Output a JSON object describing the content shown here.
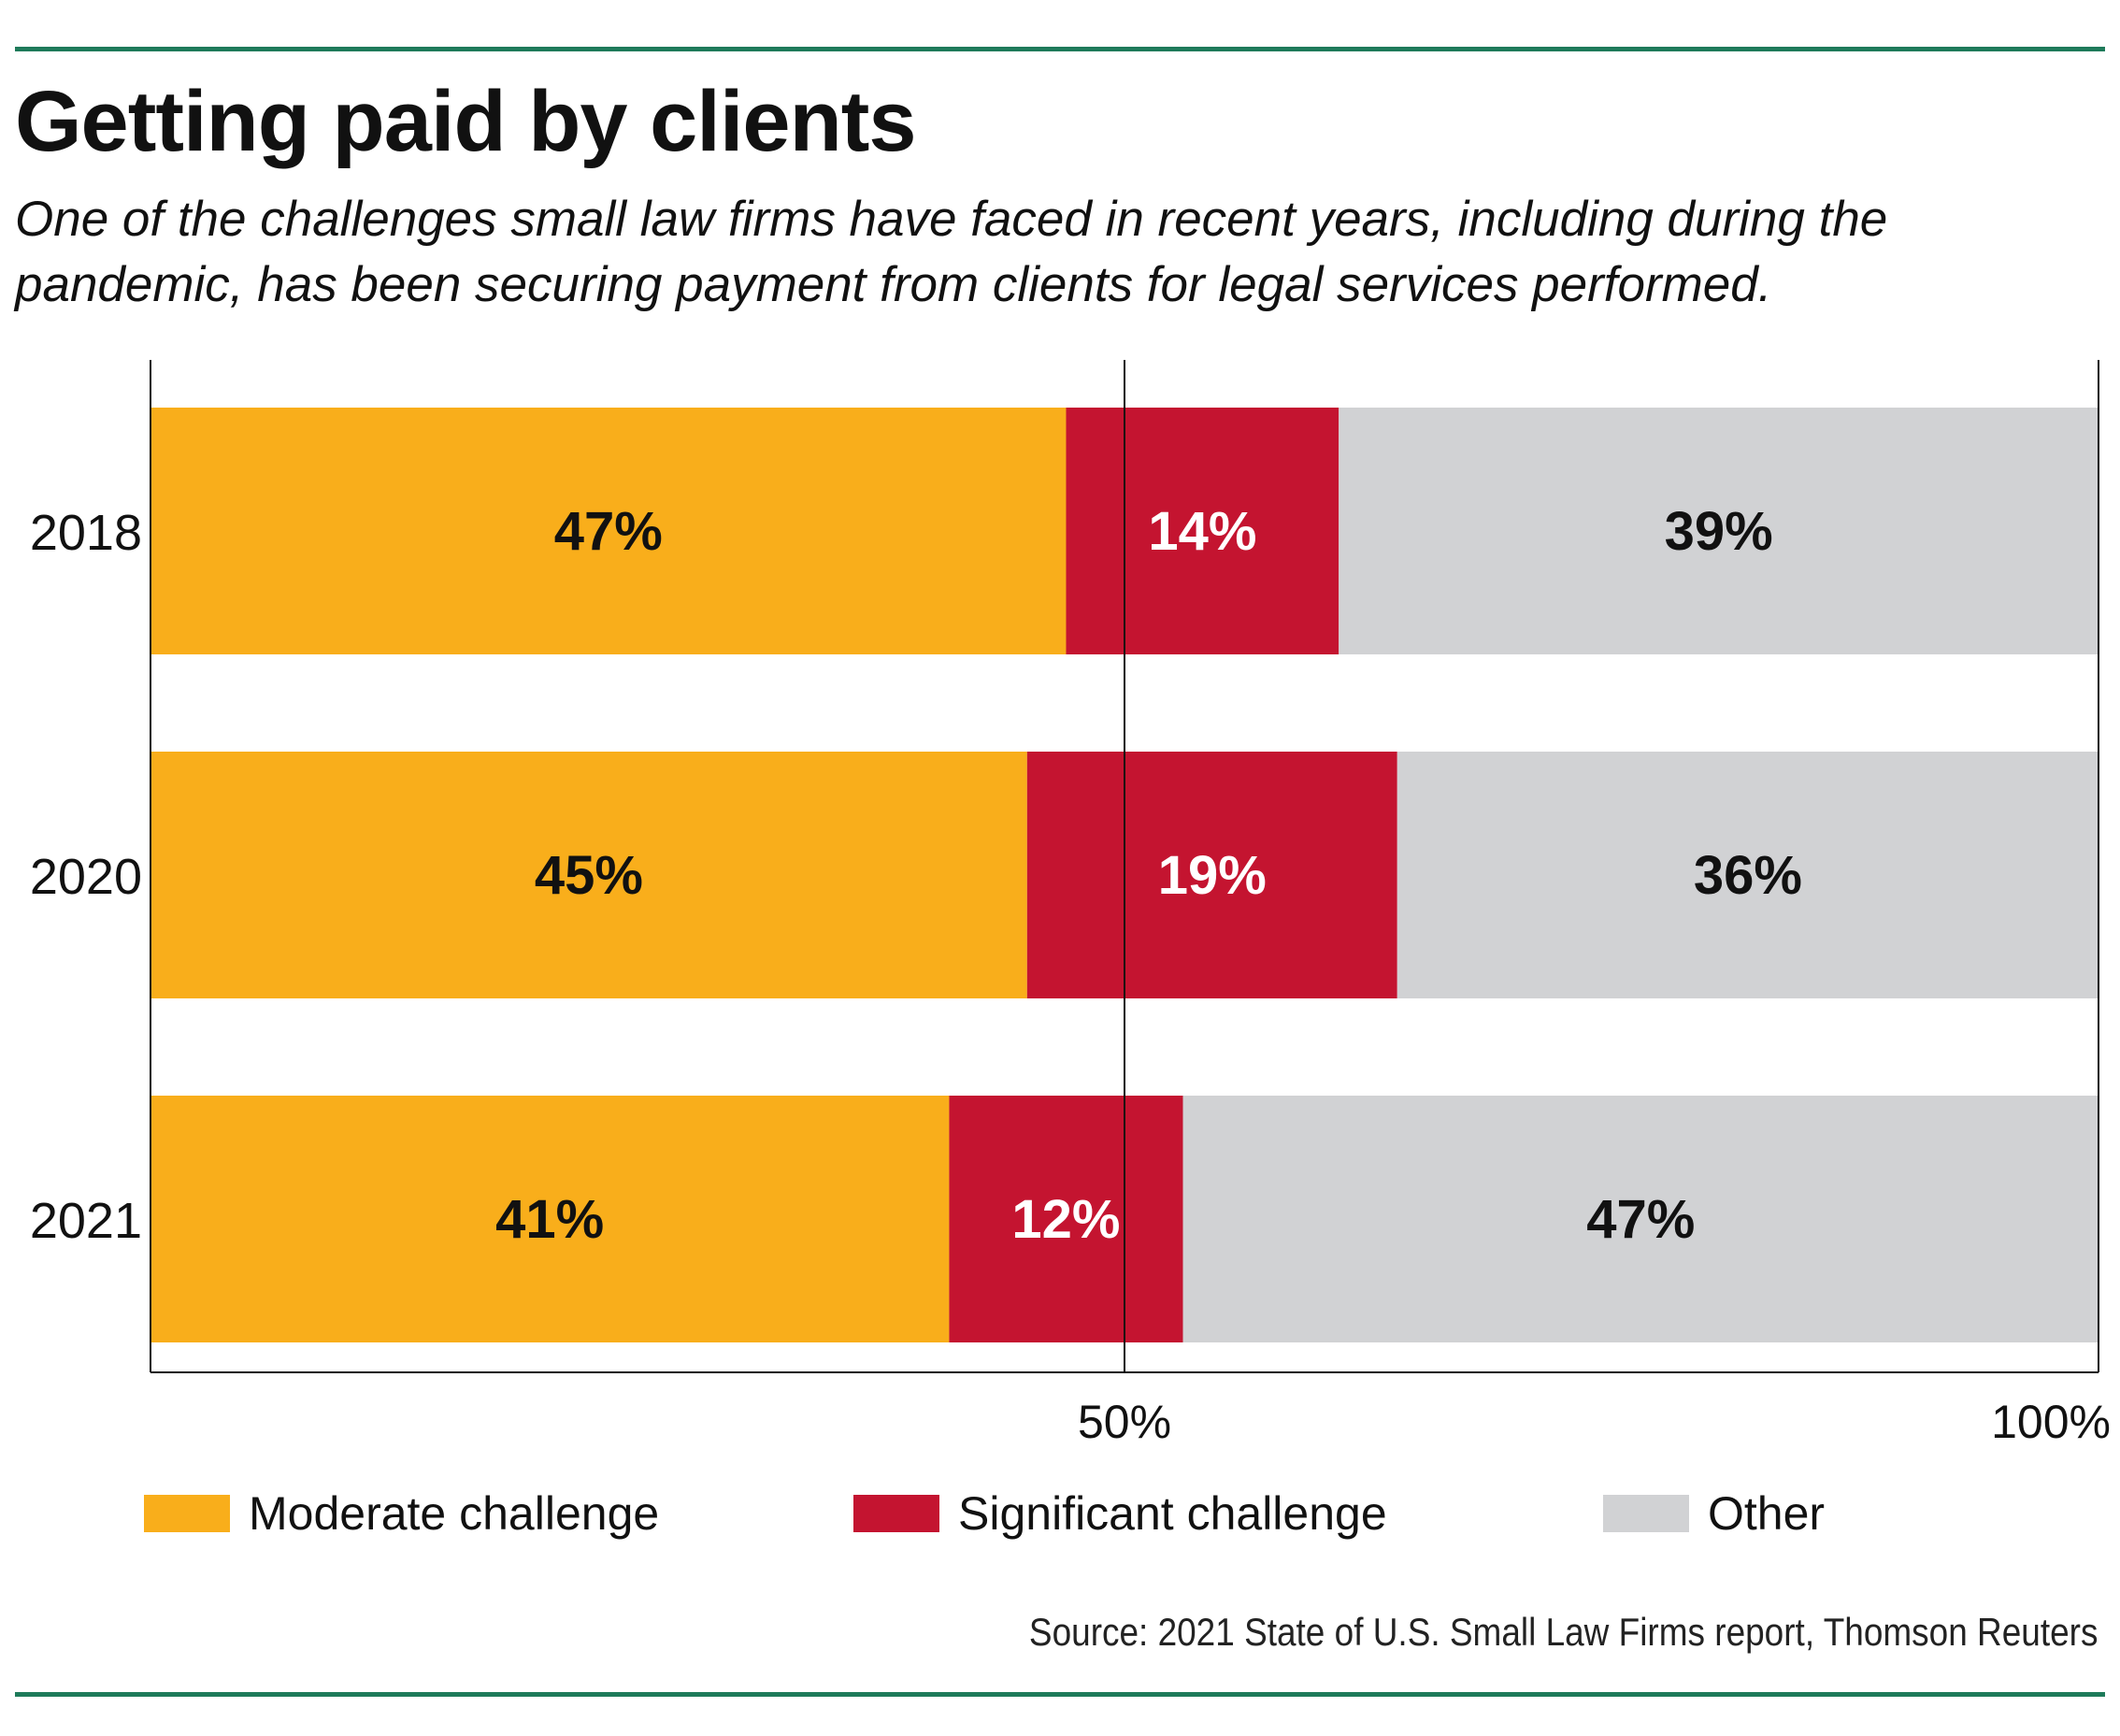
{
  "title": "Getting paid by clients",
  "subtitle": "One of the challenges small law firms have faced in recent years, including during the pandemic, has been securing payment from clients for legal services performed.",
  "source": "Source: 2021 State of U.S. Small Law Firms report, Thomson Reuters",
  "colors": {
    "moderate": "#F9AE1B",
    "significant": "#C41430",
    "other": "#D1D2D4",
    "rule": "#1E7A5A"
  },
  "legend": [
    {
      "label": "Moderate challenge",
      "color": "#F9AE1B"
    },
    {
      "label": "Significant challenge",
      "color": "#C41430"
    },
    {
      "label": "Other",
      "color": "#D1D2D4"
    }
  ],
  "chart_data": {
    "type": "bar",
    "orientation": "horizontal",
    "stacked": true,
    "categories": [
      "2018",
      "2020",
      "2021"
    ],
    "series": [
      {
        "name": "Moderate challenge",
        "values": [
          47,
          45,
          41
        ],
        "labels": [
          "47%",
          "45%",
          "41%"
        ],
        "color": "#F9AE1B",
        "label_color": "#111111"
      },
      {
        "name": "Significant challenge",
        "values": [
          14,
          19,
          12
        ],
        "labels": [
          "14%",
          "19%",
          "12%"
        ],
        "color": "#C41430",
        "label_color": "#FFFFFF"
      },
      {
        "name": "Other",
        "values": [
          39,
          36,
          47
        ],
        "labels": [
          "39%",
          "36%",
          "47%"
        ],
        "color": "#D1D2D4",
        "label_color": "#111111"
      }
    ],
    "xlim": [
      0,
      100
    ],
    "xticks": [
      50,
      100
    ],
    "xtick_labels": [
      "50%",
      "100%"
    ],
    "gridlines": [
      50,
      100
    ],
    "legend_position": "bottom"
  }
}
